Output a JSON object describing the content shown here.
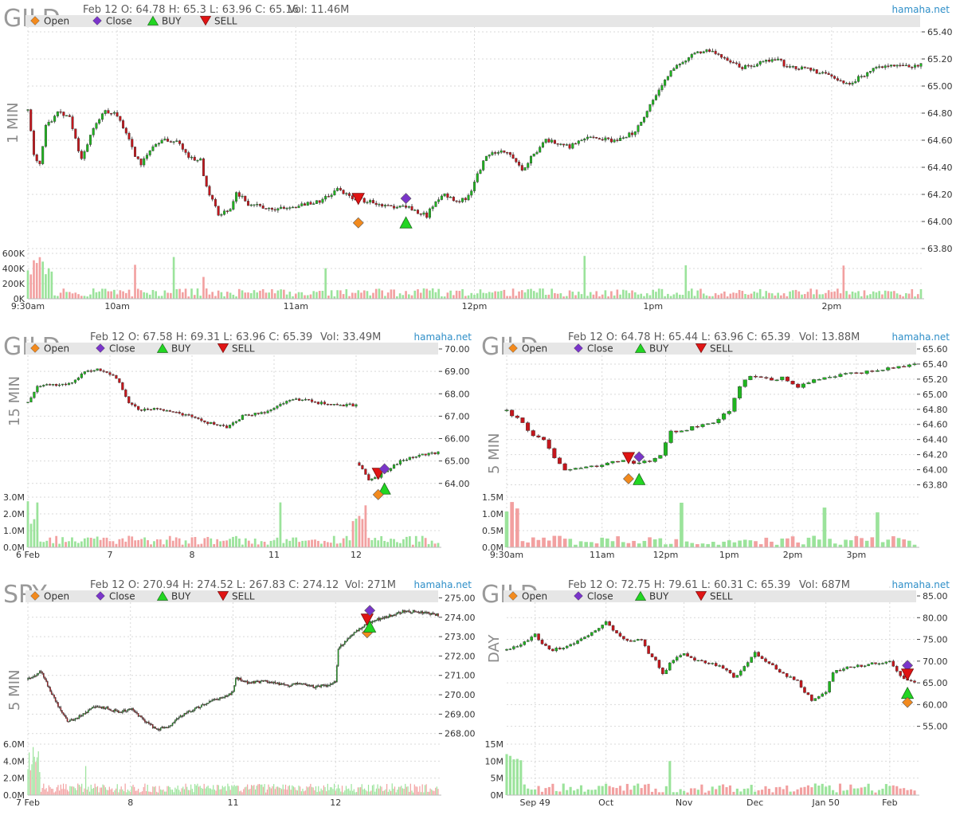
{
  "brand": "hamaha.net",
  "legend": {
    "open": "Open",
    "close": "Close",
    "buy": "BUY",
    "sell": "SELL"
  },
  "colors": {
    "up": "#1fb51f",
    "down": "#c4161c",
    "vol_up": "#9be39b",
    "vol_down": "#f2a0a0",
    "open_marker": "#f28a1e",
    "close_marker": "#7a35c9",
    "buy_marker": "#22d622",
    "sell_marker": "#e01414",
    "legend_bar": "#e6e6e6",
    "grid": "#d9d9d9",
    "brand": "#2f8fc8"
  },
  "chart_data": [
    {
      "id": "gild-1min",
      "type": "candlestick",
      "ticker": "GILD",
      "timeframe": "1 MIN",
      "header": "Feb 12 O: 64.78 H: 65.3 L: 63.96 C: 65.16",
      "volume_label": "Vol: 11.46M",
      "y_ticks": [
        "65.40",
        "65.20",
        "65.00",
        "64.80",
        "64.60",
        "64.40",
        "64.20",
        "64.00",
        "63.80"
      ],
      "ylim": [
        63.8,
        65.4
      ],
      "vol_ticks": [
        "600K",
        "400K",
        "200K",
        "0K"
      ],
      "vol_max": 600000,
      "x_ticks": [
        {
          "label": "9:30am",
          "t": 0
        },
        {
          "label": "10am",
          "t": 30
        },
        {
          "label": "11am",
          "t": 90
        },
        {
          "label": "12pm",
          "t": 150
        },
        {
          "label": "1pm",
          "t": 210
        },
        {
          "label": "2pm",
          "t": 270
        }
      ],
      "x_range": [
        0,
        300
      ],
      "anchors": [
        [
          0,
          64.82
        ],
        [
          2,
          64.5
        ],
        [
          4,
          64.42
        ],
        [
          6,
          64.7
        ],
        [
          10,
          64.8
        ],
        [
          14,
          64.78
        ],
        [
          18,
          64.45
        ],
        [
          22,
          64.7
        ],
        [
          26,
          64.82
        ],
        [
          30,
          64.78
        ],
        [
          34,
          64.6
        ],
        [
          36,
          64.48
        ],
        [
          38,
          64.42
        ],
        [
          42,
          64.55
        ],
        [
          46,
          64.6
        ],
        [
          50,
          64.6
        ],
        [
          54,
          64.48
        ],
        [
          58,
          64.45
        ],
        [
          60,
          64.25
        ],
        [
          64,
          64.05
        ],
        [
          68,
          64.1
        ],
        [
          70,
          64.22
        ],
        [
          74,
          64.13
        ],
        [
          80,
          64.1
        ],
        [
          86,
          64.09
        ],
        [
          92,
          64.12
        ],
        [
          98,
          64.15
        ],
        [
          102,
          64.2
        ],
        [
          104,
          64.24
        ],
        [
          108,
          64.18
        ],
        [
          114,
          64.15
        ],
        [
          120,
          64.12
        ],
        [
          124,
          64.11
        ],
        [
          128,
          64.1
        ],
        [
          132,
          64.06
        ],
        [
          134,
          64.04
        ],
        [
          136,
          64.12
        ],
        [
          140,
          64.2
        ],
        [
          144,
          64.15
        ],
        [
          148,
          64.18
        ],
        [
          150,
          64.3
        ],
        [
          154,
          64.48
        ],
        [
          158,
          64.52
        ],
        [
          162,
          64.5
        ],
        [
          164,
          64.45
        ],
        [
          166,
          64.38
        ],
        [
          170,
          64.5
        ],
        [
          174,
          64.6
        ],
        [
          178,
          64.58
        ],
        [
          182,
          64.55
        ],
        [
          186,
          64.6
        ],
        [
          190,
          64.62
        ],
        [
          196,
          64.6
        ],
        [
          200,
          64.62
        ],
        [
          204,
          64.66
        ],
        [
          208,
          64.82
        ],
        [
          212,
          64.98
        ],
        [
          216,
          65.12
        ],
        [
          220,
          65.18
        ],
        [
          224,
          65.24
        ],
        [
          228,
          65.26
        ],
        [
          232,
          65.24
        ],
        [
          236,
          65.18
        ],
        [
          240,
          65.14
        ],
        [
          244,
          65.16
        ],
        [
          248,
          65.18
        ],
        [
          252,
          65.2
        ],
        [
          254,
          65.16
        ],
        [
          258,
          65.14
        ],
        [
          262,
          65.13
        ],
        [
          266,
          65.1
        ],
        [
          270,
          65.06
        ],
        [
          272,
          65.04
        ],
        [
          276,
          65.02
        ],
        [
          280,
          65.07
        ],
        [
          284,
          65.12
        ],
        [
          288,
          65.16
        ],
        [
          292,
          65.15
        ],
        [
          296,
          65.14
        ],
        [
          300,
          65.16
        ]
      ],
      "markers": [
        {
          "type": "sell",
          "t": 111,
          "price": 64.17
        },
        {
          "type": "open",
          "t": 111,
          "price": 63.99
        },
        {
          "type": "close",
          "t": 127,
          "price": 64.17
        },
        {
          "type": "buy",
          "t": 127,
          "price": 63.99
        }
      ]
    },
    {
      "id": "gild-15min",
      "type": "candlestick",
      "ticker": "GILD",
      "timeframe": "15 MIN",
      "header": "Feb 12 O: 67.58 H: 69.31 L: 63.96 C: 65.39",
      "volume_label": "Vol: 33.49M",
      "y_ticks": [
        "70.00",
        "69.00",
        "68.00",
        "67.00",
        "66.00",
        "65.00",
        "64.00"
      ],
      "ylim": [
        63.6,
        70.0
      ],
      "vol_ticks": [
        "3.0M",
        "2.0M",
        "1.0M",
        "0.0M"
      ],
      "vol_max": 3000000,
      "x_ticks": [
        {
          "label": "6 Feb",
          "t": 0
        },
        {
          "label": "7",
          "t": 26
        },
        {
          "label": "8",
          "t": 52
        },
        {
          "label": "11",
          "t": 78
        },
        {
          "label": "12",
          "t": 104
        }
      ],
      "x_range": [
        0,
        130
      ],
      "gap": [
        104,
        105
      ],
      "anchors": [
        [
          0,
          67.6
        ],
        [
          3,
          68.3
        ],
        [
          6,
          68.4
        ],
        [
          10,
          68.4
        ],
        [
          14,
          68.5
        ],
        [
          18,
          69.0
        ],
        [
          22,
          69.1
        ],
        [
          26,
          68.9
        ],
        [
          29,
          68.5
        ],
        [
          32,
          67.6
        ],
        [
          35,
          67.3
        ],
        [
          40,
          67.3
        ],
        [
          44,
          67.3
        ],
        [
          48,
          67.1
        ],
        [
          52,
          67.0
        ],
        [
          55,
          66.8
        ],
        [
          60,
          66.6
        ],
        [
          63,
          66.5
        ],
        [
          68,
          67.0
        ],
        [
          72,
          67.1
        ],
        [
          76,
          67.2
        ],
        [
          80,
          67.5
        ],
        [
          84,
          67.8
        ],
        [
          88,
          67.7
        ],
        [
          92,
          67.6
        ],
        [
          96,
          67.55
        ],
        [
          100,
          67.5
        ],
        [
          104,
          67.5
        ],
        [
          105,
          64.8
        ],
        [
          108,
          64.2
        ],
        [
          111,
          64.3
        ],
        [
          114,
          64.6
        ],
        [
          118,
          65.0
        ],
        [
          122,
          65.2
        ],
        [
          126,
          65.3
        ],
        [
          130,
          65.39
        ]
      ],
      "markers": [
        {
          "type": "sell",
          "t": 111,
          "price": 64.45
        },
        {
          "type": "close",
          "t": 113,
          "price": 64.65
        },
        {
          "type": "buy",
          "t": 113,
          "price": 63.75
        },
        {
          "type": "open",
          "t": 111,
          "price": 63.5
        }
      ]
    },
    {
      "id": "gild-5min",
      "type": "candlestick",
      "ticker": "GILD",
      "timeframe": "5 MIN",
      "header": "Feb 12 O: 64.78 H: 65.44 L: 63.96 C: 65.39",
      "volume_label": "Vol: 13.88M",
      "y_ticks": [
        "65.60",
        "65.40",
        "65.20",
        "65.00",
        "64.80",
        "64.60",
        "64.40",
        "64.20",
        "64.00",
        "63.80"
      ],
      "ylim": [
        63.7,
        65.6
      ],
      "vol_ticks": [
        "1.5M",
        "1.0M",
        "0.5M",
        "0.0M"
      ],
      "vol_max": 1500000,
      "x_ticks": [
        {
          "label": "9:30am",
          "t": 0
        },
        {
          "label": "11am",
          "t": 18
        },
        {
          "label": "12pm",
          "t": 30
        },
        {
          "label": "1pm",
          "t": 42
        },
        {
          "label": "2pm",
          "t": 54
        },
        {
          "label": "3pm",
          "t": 66
        }
      ],
      "x_range": [
        0,
        77
      ],
      "anchors": [
        [
          0,
          64.78
        ],
        [
          3,
          64.62
        ],
        [
          5,
          64.45
        ],
        [
          7,
          64.38
        ],
        [
          9,
          64.15
        ],
        [
          11,
          63.98
        ],
        [
          13,
          64.02
        ],
        [
          16,
          64.05
        ],
        [
          18,
          64.06
        ],
        [
          21,
          64.12
        ],
        [
          23,
          64.1
        ],
        [
          25,
          64.08
        ],
        [
          27,
          64.12
        ],
        [
          29,
          64.2
        ],
        [
          31,
          64.5
        ],
        [
          33,
          64.52
        ],
        [
          36,
          64.58
        ],
        [
          39,
          64.62
        ],
        [
          42,
          64.78
        ],
        [
          44,
          65.1
        ],
        [
          46,
          65.25
        ],
        [
          48,
          65.22
        ],
        [
          50,
          65.18
        ],
        [
          52,
          65.22
        ],
        [
          55,
          65.1
        ],
        [
          58,
          65.18
        ],
        [
          62,
          65.25
        ],
        [
          66,
          65.28
        ],
        [
          70,
          65.32
        ],
        [
          74,
          65.36
        ],
        [
          77,
          65.39
        ]
      ],
      "markers": [
        {
          "type": "sell",
          "t": 23,
          "price": 64.16
        },
        {
          "type": "open",
          "t": 23,
          "price": 63.88
        },
        {
          "type": "close",
          "t": 25,
          "price": 64.17
        },
        {
          "type": "buy",
          "t": 25,
          "price": 63.87
        }
      ]
    },
    {
      "id": "spy-5min",
      "type": "candlestick",
      "ticker": "SPY",
      "timeframe": "5 MIN",
      "header": "Feb 12 O: 270.94 H: 274.52 L: 267.83 C: 274.12",
      "volume_label": "Vol: 271M",
      "y_ticks": [
        "275.00",
        "274.00",
        "273.00",
        "272.00",
        "271.00",
        "270.00",
        "269.00",
        "268.00"
      ],
      "ylim": [
        267.7,
        275.1
      ],
      "vol_ticks": [
        "6.0M",
        "4.0M",
        "2.0M",
        "0.0M"
      ],
      "vol_max": 6000000,
      "x_ticks": [
        {
          "label": "7 Feb",
          "t": 0
        },
        {
          "label": "8",
          "t": 78
        },
        {
          "label": "11",
          "t": 156
        },
        {
          "label": "12",
          "t": 234
        }
      ],
      "x_range": [
        0,
        312
      ],
      "anchors": [
        [
          0,
          270.8
        ],
        [
          10,
          271.2
        ],
        [
          20,
          269.8
        ],
        [
          30,
          268.6
        ],
        [
          40,
          268.9
        ],
        [
          50,
          269.4
        ],
        [
          60,
          269.3
        ],
        [
          70,
          269.1
        ],
        [
          78,
          269.3
        ],
        [
          88,
          268.7
        ],
        [
          98,
          268.2
        ],
        [
          108,
          268.4
        ],
        [
          118,
          269.0
        ],
        [
          128,
          269.3
        ],
        [
          138,
          269.6
        ],
        [
          148,
          269.9
        ],
        [
          156,
          270.1
        ],
        [
          158,
          270.9
        ],
        [
          168,
          270.6
        ],
        [
          178,
          270.7
        ],
        [
          188,
          270.6
        ],
        [
          198,
          270.5
        ],
        [
          208,
          270.6
        ],
        [
          218,
          270.4
        ],
        [
          228,
          270.5
        ],
        [
          234,
          270.7
        ],
        [
          236,
          272.4
        ],
        [
          244,
          272.9
        ],
        [
          250,
          273.3
        ],
        [
          256,
          273.6
        ],
        [
          266,
          273.9
        ],
        [
          276,
          274.1
        ],
        [
          286,
          274.3
        ],
        [
          296,
          274.3
        ],
        [
          304,
          274.2
        ],
        [
          312,
          274.12
        ]
      ],
      "markers": [
        {
          "type": "sell",
          "t": 258,
          "price": 273.9
        },
        {
          "type": "close",
          "t": 260,
          "price": 274.35
        },
        {
          "type": "open",
          "t": 258,
          "price": 273.2
        },
        {
          "type": "buy",
          "t": 260,
          "price": 273.5
        }
      ]
    },
    {
      "id": "gild-day",
      "type": "candlestick",
      "ticker": "GILD",
      "timeframe": "DAY",
      "header": "Feb 12 O: 72.75 H: 79.61 L: 60.31 C: 65.39",
      "volume_label": "Vol: 687M",
      "y_ticks": [
        "85.00",
        "80.00",
        "75.00",
        "70.00",
        "65.00",
        "60.00",
        "55.00"
      ],
      "ylim": [
        52.0,
        85.0
      ],
      "vol_ticks": [
        "15M",
        "10M",
        "5M",
        "0M"
      ],
      "vol_max": 15000000,
      "x_ticks": [
        {
          "label": "Sep 49",
          "t": 8
        },
        {
          "label": "Oct",
          "t": 28
        },
        {
          "label": "Nov",
          "t": 50
        },
        {
          "label": "Dec",
          "t": 70
        },
        {
          "label": "Jan 50",
          "t": 90
        },
        {
          "label": "Feb",
          "t": 108
        }
      ],
      "x_range": [
        0,
        115
      ],
      "anchors": [
        [
          0,
          72.5
        ],
        [
          4,
          74.0
        ],
        [
          8,
          76.0
        ],
        [
          12,
          72.5
        ],
        [
          16,
          73.0
        ],
        [
          20,
          74.5
        ],
        [
          24,
          76.5
        ],
        [
          28,
          79.0
        ],
        [
          30,
          77.0
        ],
        [
          34,
          74.5
        ],
        [
          38,
          75.0
        ],
        [
          40,
          72.0
        ],
        [
          42,
          70.0
        ],
        [
          44,
          67.0
        ],
        [
          47,
          70.5
        ],
        [
          50,
          71.5
        ],
        [
          54,
          70.0
        ],
        [
          58,
          69.5
        ],
        [
          62,
          68.0
        ],
        [
          64,
          66.0
        ],
        [
          66,
          67.5
        ],
        [
          70,
          72.0
        ],
        [
          74,
          69.5
        ],
        [
          78,
          67.0
        ],
        [
          82,
          65.5
        ],
        [
          84,
          63.0
        ],
        [
          86,
          61.0
        ],
        [
          88,
          62.0
        ],
        [
          90,
          63.0
        ],
        [
          92,
          67.5
        ],
        [
          96,
          68.5
        ],
        [
          100,
          69.0
        ],
        [
          104,
          69.5
        ],
        [
          108,
          70.0
        ],
        [
          110,
          67.5
        ],
        [
          112,
          66.0
        ],
        [
          115,
          65.39
        ]
      ],
      "markers": [
        {
          "type": "close",
          "t": 113,
          "price": 69.0
        },
        {
          "type": "sell",
          "t": 113,
          "price": 67.0
        },
        {
          "type": "buy",
          "t": 113,
          "price": 62.6
        },
        {
          "type": "open",
          "t": 113,
          "price": 60.5
        }
      ]
    }
  ]
}
